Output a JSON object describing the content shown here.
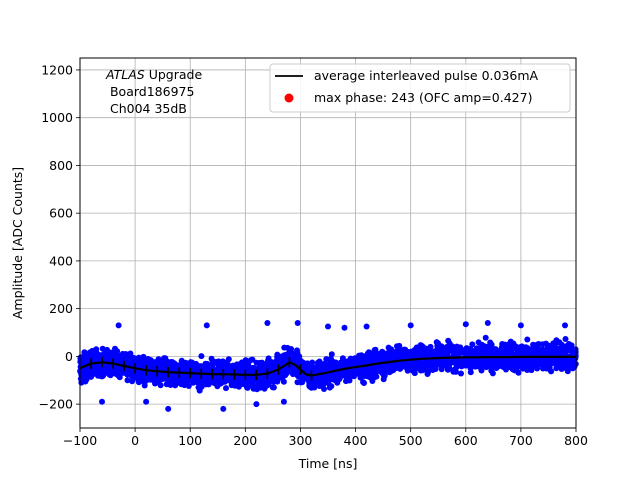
{
  "chart_data": {
    "type": "scatter",
    "xlabel": "Time [ns]",
    "ylabel": "Amplitude [ADC Counts]",
    "xlim": [
      -100,
      800
    ],
    "ylim": [
      -300,
      1250
    ],
    "xticks": [
      -100,
      0,
      100,
      200,
      300,
      400,
      500,
      600,
      700,
      800
    ],
    "yticks": [
      -200,
      0,
      200,
      400,
      600,
      800,
      1000,
      1200
    ],
    "grid": true,
    "legend_position": "top-right",
    "annotation": {
      "italic": "ATLAS",
      "rest": " Upgrade",
      "line2": " Board186975",
      "line3": " Ch004 35dB"
    },
    "series": [
      {
        "name": "average interleaved pulse 0.036mA",
        "type": "line",
        "color": "#000000",
        "x": [
          -100,
          -80,
          -60,
          -40,
          -20,
          0,
          20,
          40,
          60,
          80,
          100,
          120,
          140,
          160,
          180,
          200,
          220,
          240,
          260,
          270,
          280,
          290,
          300,
          310,
          320,
          340,
          360,
          380,
          400,
          420,
          440,
          460,
          480,
          500,
          520,
          540,
          560,
          580,
          600,
          620,
          640,
          660,
          680,
          700,
          720,
          740,
          760,
          780,
          800
        ],
        "y": [
          -50,
          -30,
          -25,
          -30,
          -40,
          -50,
          -58,
          -62,
          -66,
          -68,
          -70,
          -72,
          -74,
          -75,
          -76,
          -77,
          -77,
          -72,
          -55,
          -40,
          -25,
          -35,
          -55,
          -75,
          -80,
          -72,
          -62,
          -52,
          -45,
          -38,
          -30,
          -24,
          -18,
          -14,
          -10,
          -8,
          -6,
          -5,
          -4,
          -4,
          -3,
          -3,
          -3,
          -2,
          -2,
          -2,
          -2,
          -2,
          -2
        ]
      },
      {
        "name": "max phase: 243 (OFC amp=0.427)",
        "type": "scatter",
        "color": "#ff0000",
        "x": [],
        "y": []
      }
    ],
    "scatter_cloud": {
      "color": "#0000ff",
      "x_range": [
        -100,
        800
      ],
      "spread_center": 60,
      "outliers": [
        [
          -30,
          130
        ],
        [
          130,
          130
        ],
        [
          240,
          140
        ],
        [
          295,
          140
        ],
        [
          350,
          125
        ],
        [
          420,
          125
        ],
        [
          500,
          130
        ],
        [
          600,
          135
        ],
        [
          640,
          140
        ],
        [
          700,
          130
        ],
        [
          60,
          -220
        ],
        [
          160,
          -220
        ],
        [
          220,
          -200
        ],
        [
          270,
          -190
        ],
        [
          -60,
          -190
        ],
        [
          20,
          -190
        ],
        [
          780,
          130
        ],
        [
          380,
          120
        ]
      ]
    }
  }
}
